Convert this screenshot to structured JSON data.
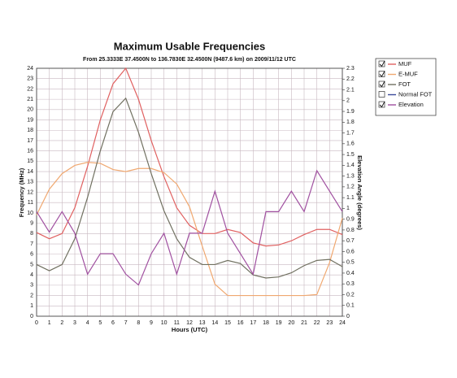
{
  "chart_data": {
    "type": "line",
    "title": "Maximum Usable Frequencies",
    "subtitle": "From  25.3333E 37.4500N to 136.7830E 32.4500N (9487.6 km) on 2009/11/12 UTC",
    "xlabel": "Hours (UTC)",
    "ylabel": "Frequency (MHz)",
    "y2label": "Elevation Angle (degrees)",
    "x": [
      0,
      1,
      2,
      3,
      4,
      5,
      6,
      7,
      8,
      9,
      10,
      11,
      12,
      13,
      14,
      15,
      16,
      17,
      18,
      19,
      20,
      21,
      22,
      23,
      24
    ],
    "xlim": [
      0,
      24
    ],
    "xticks": [
      0,
      1,
      2,
      3,
      4,
      5,
      6,
      7,
      8,
      9,
      10,
      11,
      12,
      13,
      14,
      15,
      16,
      17,
      18,
      19,
      20,
      21,
      22,
      23,
      24
    ],
    "ylim": [
      0,
      24
    ],
    "yticks": [
      0,
      1,
      2,
      3,
      4,
      5,
      6,
      7,
      8,
      9,
      10,
      11,
      12,
      13,
      14,
      15,
      16,
      17,
      18,
      19,
      20,
      21,
      22,
      23,
      24
    ],
    "y2lim": [
      0,
      2.3
    ],
    "y2ticks": [
      0,
      0.1,
      0.2,
      0.3,
      0.4,
      0.5,
      0.6,
      0.7,
      0.8,
      0.9,
      1,
      1.1,
      1.2,
      1.3,
      1.4,
      1.5,
      1.6,
      1.7,
      1.8,
      1.9,
      2,
      2.1,
      2.2,
      2.3
    ],
    "grid": true,
    "series": [
      {
        "name": "MUF",
        "color": "#e06060",
        "checked": true,
        "values": [
          8.1,
          7.5,
          8,
          10.5,
          14.5,
          19,
          22.5,
          24,
          21,
          17,
          13.5,
          10.5,
          8.8,
          8,
          8,
          8.4,
          8.1,
          7.1,
          6.8,
          6.9,
          7.3,
          7.9,
          8.4,
          8.4,
          7.9
        ]
      },
      {
        "name": "E-MUF",
        "color": "#f0a870",
        "checked": true,
        "values": [
          9.8,
          12.3,
          13.8,
          14.6,
          14.9,
          14.8,
          14.2,
          14,
          14.3,
          14.3,
          13.9,
          12.8,
          10.6,
          6.8,
          3.1,
          2,
          2,
          2,
          2,
          2,
          2,
          2,
          2.1,
          5.2,
          9.5
        ]
      },
      {
        "name": "FOT",
        "color": "#707060",
        "checked": true,
        "values": [
          5,
          4.4,
          5,
          7.5,
          11.5,
          16,
          19.8,
          21.1,
          17.8,
          13.8,
          10.2,
          7.5,
          5.7,
          5,
          5,
          5.4,
          5.1,
          4,
          3.7,
          3.8,
          4.2,
          4.9,
          5.4,
          5.5,
          4.8
        ]
      },
      {
        "name": "Elevation",
        "color": "#a050a0",
        "checked": true,
        "axis": "y2",
        "values": [
          0.97,
          0.78,
          0.97,
          0.77,
          0.39,
          0.58,
          0.58,
          0.39,
          0.29,
          0.58,
          0.77,
          0.39,
          0.77,
          0.77,
          1.16,
          0.77,
          0.58,
          0.39,
          0.97,
          0.97,
          1.16,
          0.97,
          1.35,
          1.16,
          0.97
        ]
      }
    ],
    "inactive_series": [
      {
        "name": "Normal FOT",
        "color": "#3a4a9a",
        "checked": false
      }
    ]
  }
}
